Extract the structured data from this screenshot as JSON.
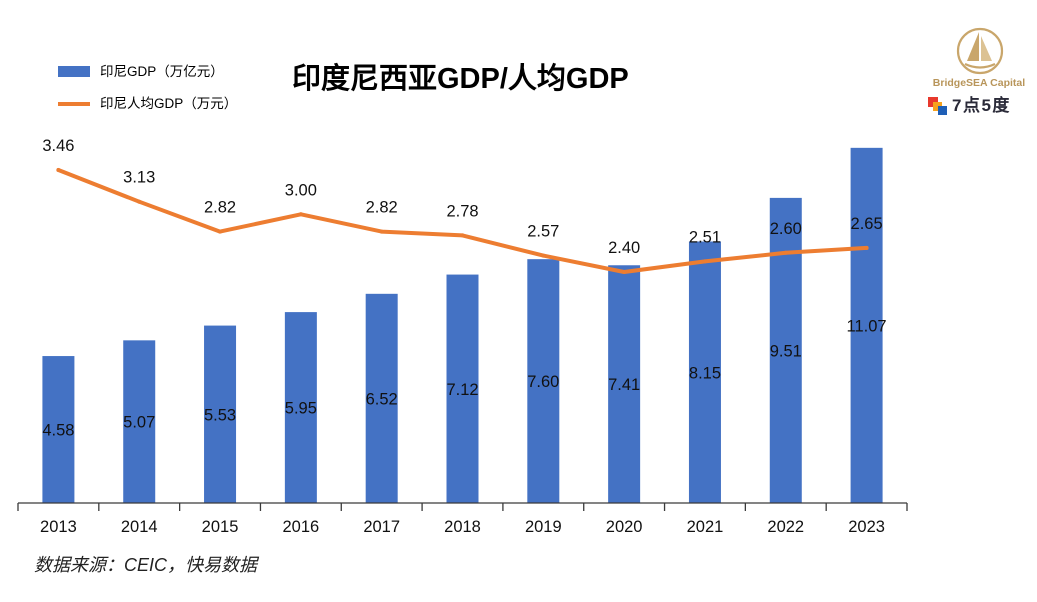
{
  "logo": {
    "brand_text": "BridgeSEA Capital",
    "brand_color": "#B8955A",
    "sub_brand_text": "7点5度",
    "icons": [
      "sailboat-emblem-icon",
      "colored-squares-icon"
    ]
  },
  "source_note": "数据来源：CEIC，快易数据",
  "chart_data": {
    "type": "bar",
    "title": "印度尼西亚GDP/人均GDP",
    "categories": [
      "2013",
      "2014",
      "2015",
      "2016",
      "2017",
      "2018",
      "2019",
      "2020",
      "2021",
      "2022",
      "2023"
    ],
    "series": [
      {
        "name": "印尼GDP（万亿元）",
        "type": "bar",
        "secondary_axis": false,
        "color": "#4472C4",
        "values": [
          4.58,
          5.07,
          5.53,
          5.95,
          6.52,
          7.12,
          7.6,
          7.41,
          8.15,
          9.51,
          11.07
        ]
      },
      {
        "name": "印尼人均GDP（万元）",
        "type": "line",
        "secondary_axis": true,
        "color": "#ED7D31",
        "values": [
          3.46,
          3.13,
          2.82,
          3.0,
          2.82,
          2.78,
          2.57,
          2.4,
          2.51,
          2.6,
          2.65
        ]
      }
    ],
    "ylim": [
      0,
      12
    ],
    "y2lim": [
      0,
      4
    ],
    "y_axes_visible": false,
    "grid": false,
    "legend_position": "top-left",
    "data_labels": true
  }
}
